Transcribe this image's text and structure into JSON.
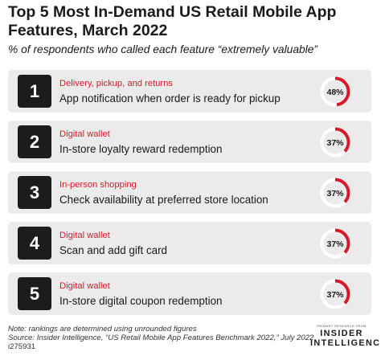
{
  "chart_data": {
    "type": "table",
    "title": "Top 5 Most In-Demand US Retail Mobile App Features, March 2022",
    "subtitle": "% of respondents who called each feature “extremely valuable”",
    "rows": [
      {
        "rank": "1",
        "category": "Delivery, pickup, and returns",
        "feature": "App notification when order is ready for pickup",
        "value": 48,
        "label": "48%"
      },
      {
        "rank": "2",
        "category": "Digital wallet",
        "feature": "In-store loyalty reward redemption",
        "value": 37,
        "label": "37%"
      },
      {
        "rank": "3",
        "category": "In-person shopping",
        "feature": "Check availability at preferred store location",
        "value": 37,
        "label": "37%"
      },
      {
        "rank": "4",
        "category": "Digital wallet",
        "feature": "Scan and add gift card",
        "value": 37,
        "label": "37%"
      },
      {
        "rank": "5",
        "category": "Digital wallet",
        "feature": "In-store digital coupon redemption",
        "value": 37,
        "label": "37%"
      }
    ]
  },
  "footer": {
    "note": "Note: rankings are determined using unrounded figures",
    "source": "Source: Insider Intelligence, “US Retail Mobile App Features Benchmark 2022,” July 2022",
    "chart_id": "i275931"
  },
  "brand": {
    "tagline": "PRIMARY RESEARCH FROM",
    "line1": "INSIDER",
    "line2": "INTELLIGENCE"
  },
  "colors": {
    "accent": "#d7192a",
    "track": "#ffffff",
    "card": "#ebebeb",
    "badge": "#1c1c1c"
  }
}
